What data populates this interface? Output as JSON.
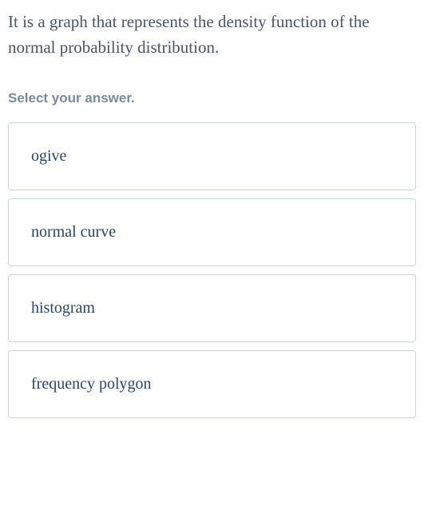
{
  "question": {
    "text": "It is a graph that represents the density function of the normal probability distribution."
  },
  "instruction": "Select your answer.",
  "options": [
    {
      "label": "ogive"
    },
    {
      "label": "normal curve"
    },
    {
      "label": "histogram"
    },
    {
      "label": "frequency polygon"
    }
  ],
  "colors": {
    "question_text": "#4a5568",
    "instruction_text": "#7a8a9e",
    "option_text": "#2b4668",
    "option_border": "#c9d6e2",
    "background": "#ffffff"
  },
  "typography": {
    "question_fontsize": 21,
    "instruction_fontsize": 17,
    "option_fontsize": 20
  }
}
